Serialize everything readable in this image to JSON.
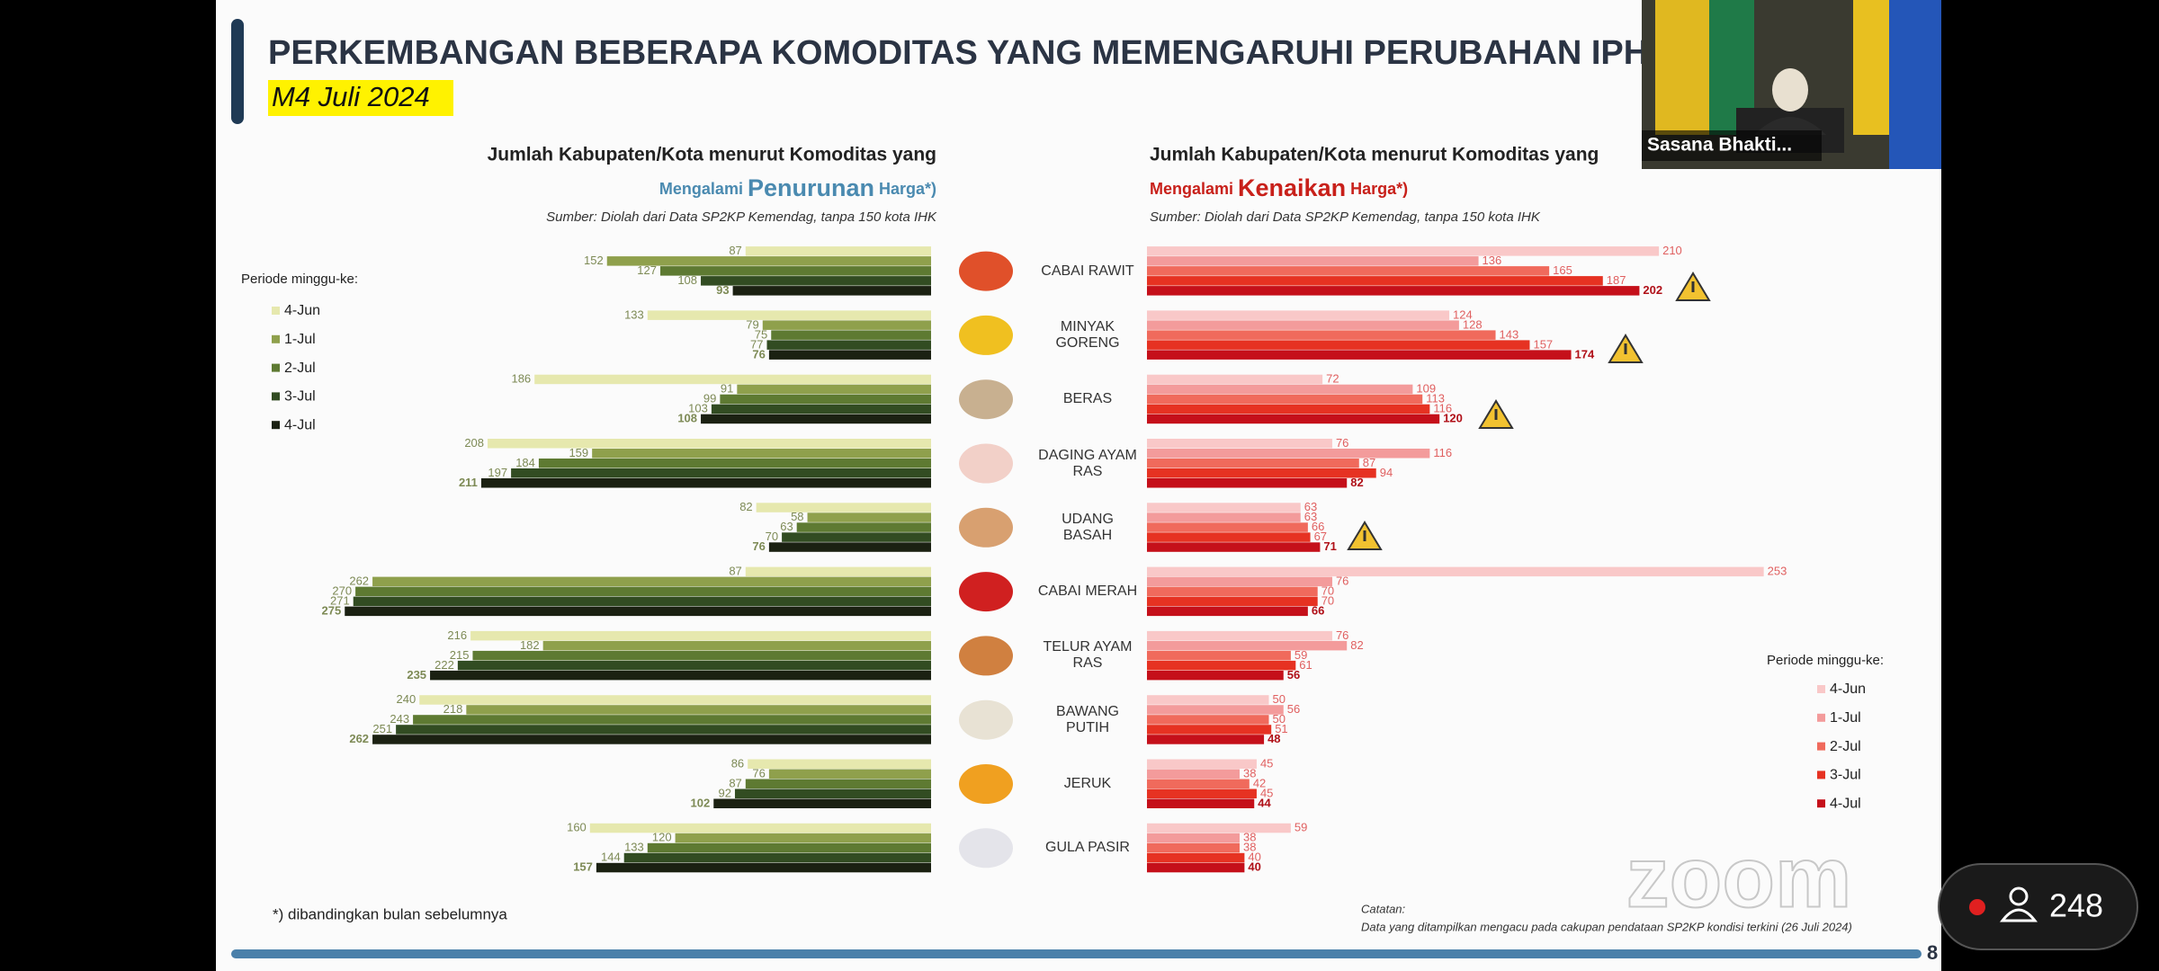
{
  "slide": {
    "title": "PERKEMBANGAN BEBERAPA KOMODITAS YANG MEMENGARUHI PERUBAHAN IPH",
    "subtitle": "M4 Juli 2024",
    "footnote": "*) dibandingkan bulan sebelumnya",
    "note_title": "Catatan:",
    "note": "Data yang ditampilkan mengacu pada cakupan pendataan SP2KP kondisi terkini (26 Juli 2024)",
    "page_number": 8
  },
  "zoom": {
    "participant_name": "Sasana Bhakti...",
    "participants": 248,
    "watermark": "zoom"
  },
  "chart_data": {
    "type": "bar",
    "categories": [
      "CABAI RAWIT",
      "MINYAK\nGORENG",
      "BERAS",
      "DAGING AYAM\nRAS",
      "UDANG\nBASAH",
      "CABAI MERAH",
      "TELUR AYAM\nRAS",
      "BAWANG\nPUTIH",
      "JERUK",
      "GULA PASIR"
    ],
    "panels": [
      {
        "title": "Jumlah Kabupaten/Kota menurut Komoditas yang",
        "subtitle_prefix": "Mengalami ",
        "subtitle_emphasis": "Penurunan",
        "subtitle_suffix": " Harga*)",
        "source": "Sumber: Diolah dari Data SP2KP Kemendag, tanpa 150 kota IHK",
        "legend_title": "Periode minggu-ke:",
        "series": [
          {
            "name": "4-Jun",
            "color": "#e6e8ae",
            "values": [
              87,
              133,
              186,
              208,
              82,
              87,
              216,
              240,
              86,
              160
            ]
          },
          {
            "name": "1-Jul",
            "color": "#8fa04c",
            "values": [
              152,
              79,
              91,
              159,
              58,
              262,
              182,
              218,
              76,
              120
            ]
          },
          {
            "name": "2-Jul",
            "color": "#5e7a32",
            "values": [
              127,
              75,
              99,
              184,
              63,
              270,
              215,
              243,
              87,
              133
            ]
          },
          {
            "name": "3-Jul",
            "color": "#324c22",
            "values": [
              108,
              77,
              103,
              197,
              70,
              271,
              222,
              251,
              92,
              144
            ]
          },
          {
            "name": "4-Jul",
            "color": "#1b2112",
            "values": [
              93,
              76,
              108,
              211,
              76,
              275,
              235,
              262,
              102,
              157
            ]
          }
        ]
      },
      {
        "title": "Jumlah Kabupaten/Kota menurut Komoditas yang",
        "subtitle_prefix": "Mengalami ",
        "subtitle_emphasis": "Kenaikan",
        "subtitle_suffix": " Harga*)",
        "source": "Sumber: Diolah dari Data SP2KP Kemendag, tanpa 150 kota IHK",
        "legend_title": "Periode minggu-ke:",
        "series": [
          {
            "name": "4-Jun",
            "color": "#f9c8c8",
            "values": [
              210,
              124,
              72,
              76,
              63,
              253,
              76,
              50,
              45,
              59
            ]
          },
          {
            "name": "1-Jul",
            "color": "#f39b9b",
            "values": [
              136,
              128,
              109,
              116,
              63,
              76,
              82,
              56,
              38,
              38
            ]
          },
          {
            "name": "2-Jul",
            "color": "#f06a5c",
            "values": [
              165,
              143,
              113,
              87,
              66,
              70,
              59,
              50,
              42,
              38
            ]
          },
          {
            "name": "3-Jul",
            "color": "#e63222",
            "values": [
              187,
              157,
              116,
              94,
              67,
              70,
              61,
              51,
              45,
              40
            ]
          },
          {
            "name": "4-Jul",
            "color": "#c5101a",
            "values": [
              202,
              174,
              120,
              82,
              71,
              66,
              56,
              48,
              44,
              40
            ]
          }
        ]
      }
    ]
  }
}
